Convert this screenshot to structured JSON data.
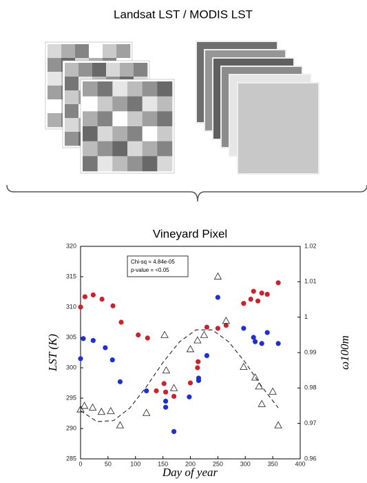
{
  "title": "Landsat LST / MODIS LST",
  "chart_data": {
    "type": "scatter",
    "title": "Vineyard Pixel",
    "x_label": "Day of year",
    "y_label": "LST (K)",
    "y2_label": "ω100m",
    "annotations": [
      "Chi-sq = 4.84e-05",
      "p-value = <0.05"
    ],
    "xlim": [
      0,
      400
    ],
    "xticks": [
      0,
      50,
      100,
      150,
      200,
      250,
      300,
      350,
      400
    ],
    "ylim": [
      285,
      320
    ],
    "yticks": [
      285,
      290,
      295,
      300,
      305,
      310,
      315,
      320
    ],
    "y2lim": [
      0.96,
      1.02
    ],
    "y2ticks": [
      0.96,
      0.97,
      0.98,
      0.99,
      1,
      1.01,
      1.02
    ],
    "series": [
      {
        "color": "#d0202a",
        "marker": "circle",
        "x": [
          0,
          8,
          23,
          39,
          59,
          74,
          105,
          122,
          138,
          152,
          155,
          170,
          200,
          213,
          214,
          230,
          250,
          265,
          297,
          310,
          315,
          323,
          330,
          340,
          360
        ],
        "values": [
          310,
          311.7,
          312,
          311.3,
          310.2,
          307.5,
          305.4,
          304.9,
          296.2,
          297.4,
          296,
          295.3,
          297.5,
          300,
          301,
          306.7,
          306.5,
          307,
          310.6,
          311.3,
          312.6,
          311,
          312.3,
          312.1,
          314
        ]
      },
      {
        "color": "#1f2fd6",
        "marker": "circle",
        "x": [
          0,
          5,
          23,
          45,
          58,
          72,
          120,
          155,
          155,
          170,
          198,
          215,
          215,
          230,
          250,
          297,
          315,
          318,
          330,
          340,
          360
        ],
        "values": [
          301.5,
          304.8,
          304.5,
          303.3,
          301.3,
          297.7,
          296.2,
          293.5,
          294.5,
          289.5,
          295.2,
          297.9,
          298.3,
          302,
          311.6,
          306.5,
          305,
          304.3,
          304,
          305.8,
          304
        ]
      },
      {
        "color": "#333333",
        "marker": "triangle",
        "axis": "y2",
        "x": [
          0,
          7,
          22,
          38,
          55,
          72,
          120,
          153,
          156,
          170,
          200,
          213,
          225,
          250,
          265,
          297,
          318,
          325,
          330,
          350,
          360
        ],
        "values": [
          0.974,
          0.975,
          0.9745,
          0.9733,
          0.9735,
          0.9695,
          0.973,
          0.995,
          0.985,
          0.98,
          0.991,
          0.9935,
          0.995,
          1.0115,
          0.999,
          0.986,
          0.983,
          0.9805,
          0.9755,
          0.979,
          0.9695
        ]
      },
      {
        "color": "#333333",
        "marker": "dashed-line",
        "axis": "y2",
        "x": [
          0,
          30,
          60,
          90,
          120,
          150,
          180,
          210,
          240,
          270,
          300,
          330,
          360
        ],
        "values": [
          0.9736,
          0.9705,
          0.9708,
          0.9744,
          0.9804,
          0.9872,
          0.993,
          0.9964,
          0.9964,
          0.993,
          0.9872,
          0.9804,
          0.9744
        ]
      }
    ]
  }
}
